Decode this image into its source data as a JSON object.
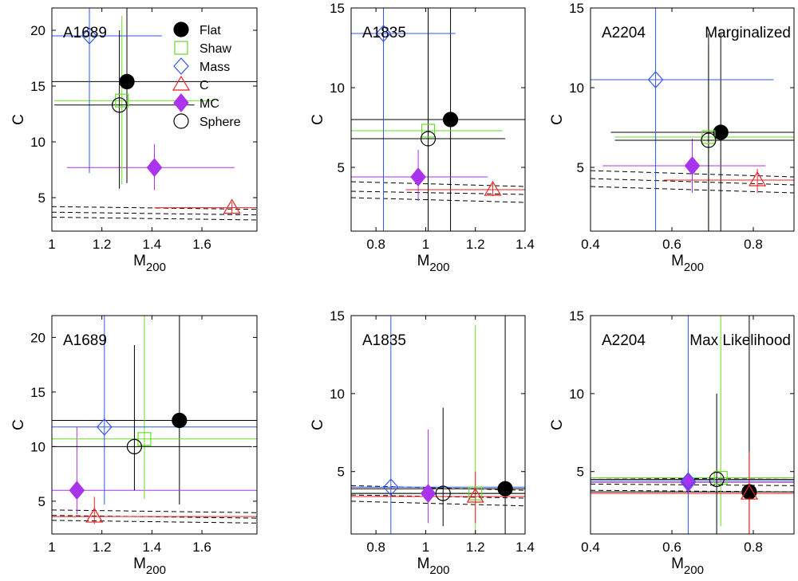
{
  "legend": {
    "entries": [
      {
        "key": "flat",
        "label": "Flat"
      },
      {
        "key": "shaw",
        "label": "Shaw"
      },
      {
        "key": "mass",
        "label": "Mass"
      },
      {
        "key": "c",
        "label": "C"
      },
      {
        "key": "mc",
        "label": "MC"
      },
      {
        "key": "sphere",
        "label": "Sphere"
      }
    ],
    "placement": "top-right of first panel"
  },
  "styles": {
    "flat": {
      "color": "#000000",
      "marker": "filled-circle"
    },
    "shaw": {
      "color": "#66dd22",
      "marker": "open-square"
    },
    "mass": {
      "color": "#3355ee",
      "marker": "open-diamond"
    },
    "c": {
      "color": "#ee2222",
      "marker": "open-triangle"
    },
    "mc": {
      "color": "#aa33ee",
      "marker": "filled-diamond"
    },
    "sphere": {
      "color": "#000000",
      "marker": "open-circle"
    }
  },
  "chart_data": [
    {
      "type": "scatter",
      "cluster": "A1689",
      "label": "",
      "xlabel": "M",
      "xlabel_sub": "200",
      "ylabel": "C",
      "xlim": [
        1.0,
        1.82
      ],
      "ylim": [
        2,
        22
      ],
      "xticks": [
        "1",
        "1.2",
        "1.4",
        "1.6"
      ],
      "yticks": [
        "5",
        "10",
        "15",
        "20"
      ],
      "points": [
        {
          "key": "flat",
          "x": 1.3,
          "y": 15.4,
          "xerr": [
            1.0,
            1.82
          ],
          "yerr": [
            6.3,
            22.0
          ]
        },
        {
          "key": "shaw",
          "x": 1.28,
          "y": 13.7,
          "xerr": [
            1.01,
            1.65
          ],
          "yerr": [
            6.2,
            21.3
          ]
        },
        {
          "key": "mass",
          "x": 1.15,
          "y": 19.5,
          "xerr": [
            1.0,
            1.44
          ],
          "yerr": [
            7.2,
            22.0
          ]
        },
        {
          "key": "c",
          "x": 1.72,
          "y": 4.1,
          "xerr": [
            1.41,
            1.82
          ],
          "yerr": [
            3.6,
            4.6
          ]
        },
        {
          "key": "mc",
          "x": 1.41,
          "y": 7.7,
          "xerr": [
            1.06,
            1.73
          ],
          "yerr": [
            5.7,
            9.8
          ]
        },
        {
          "key": "sphere",
          "x": 1.27,
          "y": 13.3,
          "xerr": [
            1.01,
            1.57
          ],
          "yerr": [
            5.8,
            20.0
          ]
        }
      ],
      "dashed_lines": [
        [
          4.2,
          3.95
        ],
        [
          3.7,
          3.45
        ],
        [
          3.25,
          3.0
        ]
      ]
    },
    {
      "type": "scatter",
      "cluster": "A1835",
      "label": "",
      "xlabel": "M",
      "xlabel_sub": "200",
      "ylabel": "C",
      "xlim": [
        0.7,
        1.4
      ],
      "ylim": [
        1,
        15
      ],
      "xticks": [
        "0.8",
        "1",
        "1.2",
        "1.4"
      ],
      "yticks": [
        "5",
        "10",
        "15"
      ],
      "points": [
        {
          "key": "flat",
          "x": 1.1,
          "y": 8.0,
          "xerr": [
            0.7,
            1.4
          ],
          "yerr": [
            1.0,
            15.0
          ]
        },
        {
          "key": "shaw",
          "x": 1.01,
          "y": 7.3,
          "xerr": [
            0.7,
            1.31
          ],
          "yerr": [
            1.0,
            15.0
          ]
        },
        {
          "key": "mass",
          "x": 0.83,
          "y": 13.4,
          "xerr": [
            0.7,
            1.12
          ],
          "yerr": [
            1.0,
            15.0
          ]
        },
        {
          "key": "c",
          "x": 1.27,
          "y": 3.6,
          "xerr": [
            0.92,
            1.4
          ],
          "yerr": [
            3.2,
            4.0
          ]
        },
        {
          "key": "mc",
          "x": 0.97,
          "y": 4.4,
          "xerr": [
            0.7,
            1.25
          ],
          "yerr": [
            2.9,
            6.1
          ]
        },
        {
          "key": "sphere",
          "x": 1.01,
          "y": 6.8,
          "xerr": [
            0.7,
            1.32
          ],
          "yerr": [
            1.0,
            15.0
          ]
        }
      ],
      "dashed_lines": [
        [
          4.1,
          3.8
        ],
        [
          3.5,
          3.3
        ],
        [
          3.1,
          2.8
        ]
      ]
    },
    {
      "type": "scatter",
      "cluster": "A2204",
      "label": "Marginalized",
      "xlabel": "M",
      "xlabel_sub": "200",
      "ylabel": "C",
      "xlim": [
        0.4,
        0.9
      ],
      "ylim": [
        1,
        15
      ],
      "xticks": [
        "0.4",
        "0.6",
        "0.8"
      ],
      "yticks": [
        "5",
        "10",
        "15"
      ],
      "points": [
        {
          "key": "flat",
          "x": 0.72,
          "y": 7.2,
          "xerr": [
            0.45,
            0.9
          ],
          "yerr": [
            1.0,
            13.4
          ]
        },
        {
          "key": "shaw",
          "x": 0.69,
          "y": 6.9,
          "xerr": [
            0.46,
            0.9
          ],
          "yerr": [
            1.0,
            12.7
          ]
        },
        {
          "key": "mass",
          "x": 0.56,
          "y": 10.5,
          "xerr": [
            0.4,
            0.85
          ],
          "yerr": [
            1.0,
            15.0
          ]
        },
        {
          "key": "c",
          "x": 0.81,
          "y": 4.2,
          "xerr": [
            0.58,
            0.9
          ],
          "yerr": [
            3.4,
            4.9
          ]
        },
        {
          "key": "mc",
          "x": 0.65,
          "y": 5.1,
          "xerr": [
            0.43,
            0.83
          ],
          "yerr": [
            3.4,
            6.8
          ]
        },
        {
          "key": "sphere",
          "x": 0.69,
          "y": 6.7,
          "xerr": [
            0.46,
            0.9
          ],
          "yerr": [
            1.0,
            13.4
          ]
        }
      ],
      "dashed_lines": [
        [
          4.8,
          4.4
        ],
        [
          4.3,
          3.9
        ],
        [
          3.8,
          3.4
        ]
      ]
    },
    {
      "type": "scatter",
      "cluster": "A1689",
      "label": "",
      "xlabel": "M",
      "xlabel_sub": "200",
      "ylabel": "C",
      "xlim": [
        1.0,
        1.82
      ],
      "ylim": [
        2,
        22
      ],
      "xticks": [
        "1",
        "1.2",
        "1.4",
        "1.6"
      ],
      "yticks": [
        "5",
        "10",
        "15",
        "20"
      ],
      "points": [
        {
          "key": "flat",
          "x": 1.51,
          "y": 12.4,
          "xerr": [
            1.0,
            1.82
          ],
          "yerr": [
            4.7,
            22.0
          ]
        },
        {
          "key": "shaw",
          "x": 1.37,
          "y": 10.7,
          "xerr": [
            1.0,
            1.82
          ],
          "yerr": [
            5.2,
            22.0
          ]
        },
        {
          "key": "mass",
          "x": 1.21,
          "y": 11.8,
          "xerr": [
            1.0,
            1.82
          ],
          "yerr": [
            4.7,
            22.0
          ]
        },
        {
          "key": "c",
          "x": 1.17,
          "y": 3.6,
          "xerr": [
            1.0,
            1.82
          ],
          "yerr": [
            2.9,
            5.4
          ]
        },
        {
          "key": "mc",
          "x": 1.1,
          "y": 6.0,
          "xerr": [
            1.0,
            1.82
          ],
          "yerr": [
            3.8,
            11.8
          ]
        },
        {
          "key": "sphere",
          "x": 1.33,
          "y": 10.0,
          "xerr": [
            1.0,
            1.8
          ],
          "yerr": [
            6.0,
            19.3
          ]
        }
      ],
      "dashed_lines": [
        [
          4.2,
          3.95
        ],
        [
          3.7,
          3.45
        ],
        [
          3.25,
          3.0
        ]
      ]
    },
    {
      "type": "scatter",
      "cluster": "A1835",
      "label": "",
      "xlabel": "M",
      "xlabel_sub": "200",
      "ylabel": "C",
      "xlim": [
        0.7,
        1.4
      ],
      "ylim": [
        1,
        15
      ],
      "xticks": [
        "0.8",
        "1",
        "1.2",
        "1.4"
      ],
      "yticks": [
        "5",
        "10",
        "15"
      ],
      "points": [
        {
          "key": "flat",
          "x": 1.32,
          "y": 3.9,
          "xerr": [
            0.7,
            1.4
          ],
          "yerr": [
            1.0,
            15.0
          ]
        },
        {
          "key": "shaw",
          "x": 1.2,
          "y": 3.6,
          "xerr": [
            0.7,
            1.4
          ],
          "yerr": [
            1.0,
            14.4
          ]
        },
        {
          "key": "mass",
          "x": 0.86,
          "y": 4.0,
          "xerr": [
            0.7,
            1.4
          ],
          "yerr": [
            1.0,
            15.0
          ]
        },
        {
          "key": "c",
          "x": 1.2,
          "y": 3.4,
          "xerr": [
            0.7,
            1.4
          ],
          "yerr": [
            1.7,
            5.0
          ]
        },
        {
          "key": "mc",
          "x": 1.01,
          "y": 3.6,
          "xerr": [
            0.7,
            1.4
          ],
          "yerr": [
            1.7,
            7.7
          ]
        },
        {
          "key": "sphere",
          "x": 1.07,
          "y": 3.6,
          "xerr": [
            0.7,
            1.4
          ],
          "yerr": [
            1.5,
            9.1
          ]
        }
      ],
      "dashed_lines": [
        [
          4.1,
          3.8
        ],
        [
          3.5,
          3.3
        ],
        [
          3.1,
          2.8
        ]
      ]
    },
    {
      "type": "scatter",
      "cluster": "A2204",
      "label": "Max Likelihood",
      "xlabel": "M",
      "xlabel_sub": "200",
      "ylabel": "C",
      "xlim": [
        0.4,
        0.9
      ],
      "ylim": [
        1,
        15
      ],
      "xticks": [
        "0.4",
        "0.6",
        "0.8"
      ],
      "yticks": [
        "5",
        "10",
        "15"
      ],
      "points": [
        {
          "key": "flat",
          "x": 0.79,
          "y": 3.7,
          "xerr": [
            0.4,
            0.9
          ],
          "yerr": [
            1.0,
            15.0
          ]
        },
        {
          "key": "shaw",
          "x": 0.72,
          "y": 4.6,
          "xerr": [
            0.4,
            0.9
          ],
          "yerr": [
            1.5,
            15.0
          ]
        },
        {
          "key": "mass",
          "x": 0.64,
          "y": 4.4,
          "xerr": [
            0.4,
            0.9
          ],
          "yerr": [
            1.0,
            15.0
          ]
        },
        {
          "key": "c",
          "x": 0.79,
          "y": 3.6,
          "xerr": [
            0.4,
            0.9
          ],
          "yerr": [
            1.0,
            6.3
          ]
        },
        {
          "key": "mc",
          "x": 0.64,
          "y": 4.3,
          "xerr": [
            0.4,
            0.9
          ],
          "yerr": [
            3.3,
            5.2
          ]
        },
        {
          "key": "sphere",
          "x": 0.71,
          "y": 4.5,
          "xerr": [
            0.4,
            0.9
          ],
          "yerr": [
            1.0,
            10.0
          ]
        }
      ],
      "dashed_lines": [
        [
          4.6,
          4.5
        ],
        [
          4.2,
          4.1
        ],
        [
          3.8,
          3.7
        ]
      ]
    }
  ]
}
